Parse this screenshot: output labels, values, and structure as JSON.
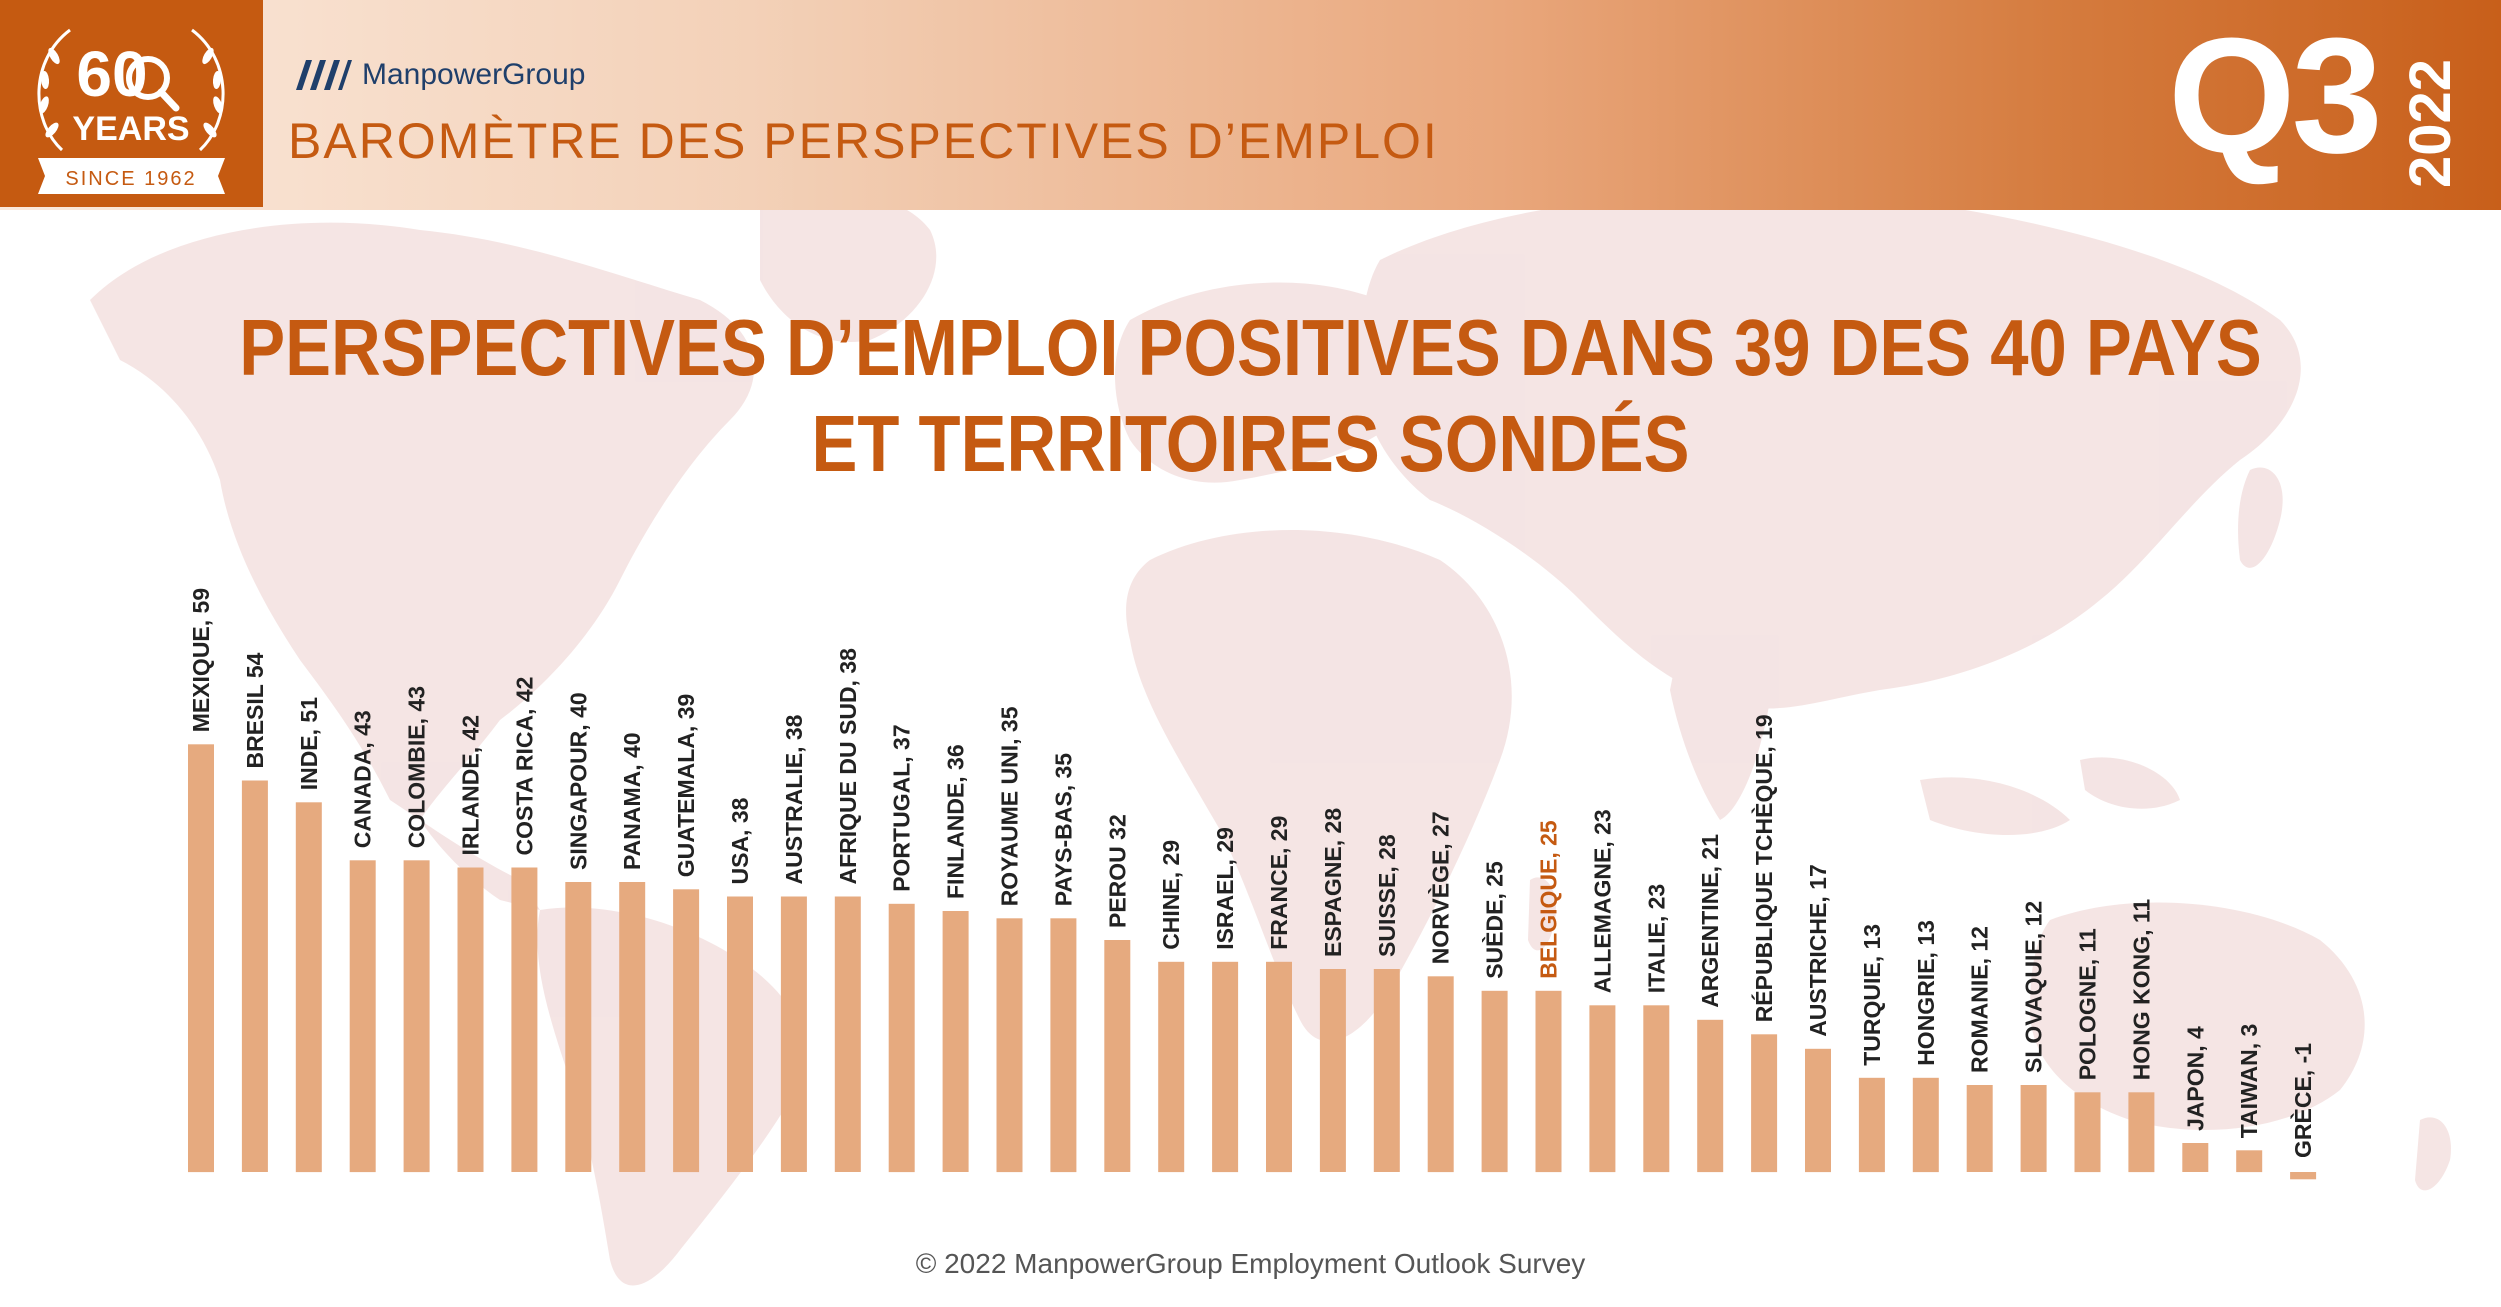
{
  "badge": {
    "number": "60",
    "years_label": "YEARS",
    "since_label": "SINCE 1962"
  },
  "header": {
    "brand": "ManpowerGroup",
    "subtitle": "BAROMÈTRE DES PERSPECTIVES D’EMPLOI",
    "quarter": "Q3",
    "year": "2022"
  },
  "title_lines": [
    "PERSPECTIVES D’EMPLOI POSITIVES DANS 39 DES 40 PAYS",
    "ET TERRITOIRES SONDÉS"
  ],
  "footer": "© 2022 ManpowerGroup Employment Outlook Survey",
  "colors": {
    "accent": "#c55a11",
    "bar": "#e6aa7f",
    "label": "#222222"
  },
  "chart_data": {
    "type": "bar",
    "title": "PERSPECTIVES D’EMPLOI POSITIVES DANS 39 DES 40 PAYS ET TERRITOIRES SONDÉS",
    "xlabel": "",
    "ylabel": "",
    "ylim": [
      -1,
      59
    ],
    "grid": false,
    "highlight": "BELGIQUE",
    "categories": [
      "MEXIQUE",
      "BRESIL",
      "INDE",
      "CANADA",
      "COLOMBIE",
      "IRLANDE",
      "COSTA RICA",
      "SINGAPOUR",
      "PANAMA",
      "GUATEMALA",
      "USA",
      "AUSTRALIE",
      "AFRIQUE DU SUD",
      "PORTUGAL",
      "FINLANDE",
      "ROYAUME UNI",
      "PAYS-BAS",
      "PEROU",
      "CHINE",
      "ISRAEL",
      "FRANCE",
      "ESPAGNE",
      "SUISSE",
      "NORVÈGE",
      "SUÈDE",
      "BELGIQUE",
      "ALLEMAGNE",
      "ITALIE",
      "ARGENTINE",
      "RÉPUBLIQUE TCHÈQUE",
      "AUSTRICHE",
      "TURQUIE",
      "HONGRIE",
      "ROMANIE",
      "SLOVAQUIE",
      "POLOGNE",
      "HONG KONG",
      "JAPON",
      "TAIWAN",
      "GRÈCE"
    ],
    "values": [
      59,
      54,
      51,
      43,
      43,
      42,
      42,
      40,
      40,
      39,
      38,
      38,
      38,
      37,
      36,
      35,
      35,
      32,
      29,
      29,
      29,
      28,
      28,
      27,
      25,
      25,
      23,
      23,
      21,
      19,
      17,
      13,
      13,
      12,
      12,
      11,
      11,
      4,
      3,
      -1
    ],
    "labels": [
      "MEXIQUE, 59",
      "BRESIL 54",
      "INDE, 51",
      "CANADA, 43",
      "COLOMBIE, 43",
      "IRLANDE, 42",
      "COSTA RICA, 42",
      "SINGAPOUR, 40",
      "PANAMA, 40",
      "GUATEMALA, 39",
      "USA, 38",
      "AUSTRALIE, 38",
      "AFRIQUE DU SUD, 38",
      "PORTUGAL, 37",
      "FINLANDE, 36",
      "ROYAUME UNI, 35",
      "PAYS-BAS, 35",
      "PEROU 32",
      "CHINE, 29",
      "ISRAEL, 29",
      "FRANCE, 29",
      "ESPAGNE, 28",
      "SUISSE, 28",
      "NORVÈGE, 27",
      "SUÈDE, 25",
      "BELGIQUE, 25",
      "ALLEMAGNE, 23",
      "ITALIE, 23",
      "ARGENTINE, 21",
      "RÉPUBLIQUE TCHÈQUE, 19",
      "AUSTRICHE, 17",
      "TURQUIE, 13",
      "HONGRIE, 13",
      "ROMANIE, 12",
      "SLOVAQUIE, 12",
      "POLOGNE, 11",
      "HONG KONG, 11",
      "JAPON, 4",
      "TAIWAN, 3",
      "GRÈCE, -1"
    ]
  }
}
